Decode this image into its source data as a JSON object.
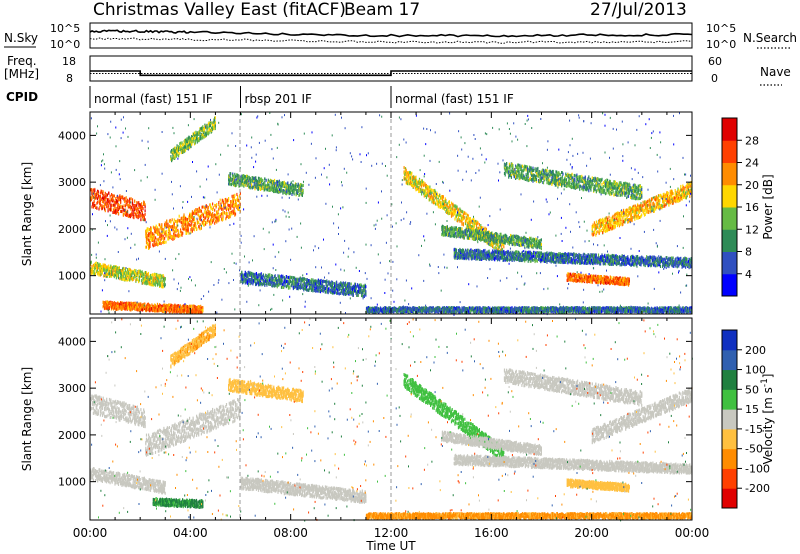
{
  "header": {
    "title": "Christmas Valley East (fitACF)",
    "beam": "Beam 17",
    "date": "27/Jul/2013"
  },
  "labels": {
    "nsky": "N.Sky",
    "nsearch": "N.Search",
    "freq_line1": "Freq.",
    "freq_line2": "[MHz]",
    "nave": "Nave",
    "cpid": "CPID",
    "time_axis": "Time UT",
    "slant_range_1": "Slant Range [km]",
    "slant_range_2": "Slant Range [km]",
    "power_label": "Power [dB]",
    "velocity_label": "Velocity [m s",
    "velocity_sup": "-1",
    "velocity_close": "]"
  },
  "noise_panel": {
    "left_ticks": [
      "10^5",
      "10^0"
    ],
    "right_ticks": [
      "10^5",
      "10^0"
    ]
  },
  "freq_panel": {
    "left_ticks": [
      "18",
      "8"
    ],
    "right_ticks": [
      "60",
      "0"
    ]
  },
  "cpid_segments": [
    {
      "start_h": 0,
      "end_h": 6,
      "label": "normal (fast) 151 IF"
    },
    {
      "start_h": 6,
      "end_h": 12,
      "label": "rbsp 201 IF"
    },
    {
      "start_h": 12,
      "end_h": 24,
      "label": "normal (fast) 151 IF"
    }
  ],
  "time_ticks": [
    "00:00",
    "04:00",
    "08:00",
    "12:00",
    "16:00",
    "20:00",
    "00:00"
  ],
  "range_ticks": [
    "1000",
    "2000",
    "3000",
    "4000"
  ],
  "power_scale": {
    "ticks": [
      "4",
      "8",
      "12",
      "16",
      "20",
      "24",
      "28"
    ],
    "colors": [
      "#0000ff",
      "#3050c0",
      "#2e8b57",
      "#66bb44",
      "#ffd700",
      "#ff8c00",
      "#ff4000",
      "#e00000"
    ]
  },
  "velocity_scale": {
    "ticks": [
      "-200",
      "-100",
      "-50",
      "-15",
      "15",
      "50",
      "100",
      "200"
    ],
    "colors": [
      "#e00000",
      "#ff4000",
      "#ff8c00",
      "#ffc040",
      "#c8c8c0",
      "#40c040",
      "#208040",
      "#3060b0",
      "#1030c0"
    ]
  },
  "chart_data": [
    {
      "type": "line",
      "name": "noise",
      "x": [
        0,
        1,
        2,
        3,
        4,
        6,
        8,
        10,
        12,
        14,
        16,
        18,
        20,
        22,
        24
      ],
      "series": [
        {
          "values": [
            3.2,
            3.4,
            3.3,
            3.2,
            3.2,
            3.0,
            2.7,
            2.6,
            2.5,
            2.5,
            2.4,
            2.5,
            2.6,
            2.6,
            2.7
          ]
        },
        {
          "values": [
            1.8,
            1.9,
            1.8,
            1.8,
            1.7,
            1.6,
            1.5,
            1.3,
            1.2,
            1.2,
            1.1,
            1.2,
            1.2,
            1.2,
            1.3
          ]
        }
      ]
    },
    {
      "type": "line",
      "name": "frequency",
      "x": [
        0,
        2,
        2,
        12,
        12,
        24
      ],
      "series": [
        {
          "values": [
            12.0,
            12.0,
            10.3,
            10.3,
            12.0,
            12.0
          ]
        },
        {
          "values": [
            11.0,
            11.0,
            11.0,
            11.0,
            11.0,
            11.0
          ]
        }
      ]
    },
    {
      "type": "heatmap",
      "name": "power",
      "xlim": [
        0,
        24
      ],
      "ylim": [
        180,
        4500
      ],
      "bands": [
        {
          "h0": 0.0,
          "h1": 2.2,
          "r0": 2700,
          "r1": 2400,
          "w": 400,
          "v": 26
        },
        {
          "h0": 2.2,
          "h1": 6.0,
          "r0": 1800,
          "r1": 2600,
          "w": 450,
          "v": 22
        },
        {
          "h0": 3.2,
          "h1": 5.0,
          "r0": 3600,
          "r1": 4300,
          "w": 250,
          "v": 14
        },
        {
          "h0": 5.5,
          "h1": 8.5,
          "r0": 3100,
          "r1": 2850,
          "w": 250,
          "v": 12
        },
        {
          "h0": 0.0,
          "h1": 3.0,
          "r0": 1200,
          "r1": 900,
          "w": 250,
          "v": 16
        },
        {
          "h0": 0.5,
          "h1": 4.5,
          "r0": 400,
          "r1": 300,
          "w": 150,
          "v": 24
        },
        {
          "h0": 6.0,
          "h1": 11.0,
          "r0": 1000,
          "r1": 700,
          "w": 250,
          "v": 8
        },
        {
          "h0": 11.0,
          "h1": 24.0,
          "r0": 300,
          "r1": 300,
          "w": 100,
          "v": 8
        },
        {
          "h0": 12.5,
          "h1": 16.5,
          "r0": 3200,
          "r1": 1600,
          "w": 300,
          "v": 18
        },
        {
          "h0": 14.0,
          "h1": 18.0,
          "r0": 2000,
          "r1": 1700,
          "w": 200,
          "v": 12
        },
        {
          "h0": 16.5,
          "h1": 22.0,
          "r0": 3300,
          "r1": 2800,
          "w": 300,
          "v": 12
        },
        {
          "h0": 20.0,
          "h1": 24.0,
          "r0": 2000,
          "r1": 2900,
          "w": 300,
          "v": 20
        },
        {
          "h0": 14.5,
          "h1": 24.0,
          "r0": 1500,
          "r1": 1300,
          "w": 200,
          "v": 8
        },
        {
          "h0": 19.0,
          "h1": 21.5,
          "r0": 1000,
          "r1": 900,
          "w": 150,
          "v": 24
        }
      ]
    },
    {
      "type": "heatmap",
      "name": "velocity",
      "xlim": [
        0,
        24
      ],
      "ylim": [
        180,
        4500
      ],
      "bands": [
        {
          "h0": 0.0,
          "h1": 2.2,
          "r0": 2700,
          "r1": 2400,
          "w": 400,
          "v": 0
        },
        {
          "h0": 2.2,
          "h1": 6.0,
          "r0": 1800,
          "r1": 2600,
          "w": 450,
          "v": -5
        },
        {
          "h0": 3.2,
          "h1": 5.0,
          "r0": 3600,
          "r1": 4300,
          "w": 250,
          "v": -40
        },
        {
          "h0": 5.5,
          "h1": 8.5,
          "r0": 3100,
          "r1": 2850,
          "w": 250,
          "v": -30
        },
        {
          "h0": 0.0,
          "h1": 3.0,
          "r0": 1200,
          "r1": 900,
          "w": 250,
          "v": 0
        },
        {
          "h0": 2.5,
          "h1": 4.5,
          "r0": 600,
          "r1": 550,
          "w": 150,
          "v": 60
        },
        {
          "h0": 6.0,
          "h1": 11.0,
          "r0": 1000,
          "r1": 700,
          "w": 250,
          "v": 5
        },
        {
          "h0": 11.0,
          "h1": 24.0,
          "r0": 300,
          "r1": 300,
          "w": 100,
          "v": -60
        },
        {
          "h0": 12.5,
          "h1": 16.5,
          "r0": 3200,
          "r1": 1600,
          "w": 300,
          "v": 30
        },
        {
          "h0": 14.0,
          "h1": 18.0,
          "r0": 2000,
          "r1": 1700,
          "w": 200,
          "v": 0
        },
        {
          "h0": 16.5,
          "h1": 22.0,
          "r0": 3300,
          "r1": 2800,
          "w": 300,
          "v": 0
        },
        {
          "h0": 20.0,
          "h1": 24.0,
          "r0": 2000,
          "r1": 2900,
          "w": 300,
          "v": 0
        },
        {
          "h0": 14.5,
          "h1": 24.0,
          "r0": 1500,
          "r1": 1300,
          "w": 200,
          "v": 0
        },
        {
          "h0": 19.0,
          "h1": 21.5,
          "r0": 1000,
          "r1": 900,
          "w": 150,
          "v": -20
        }
      ]
    }
  ]
}
